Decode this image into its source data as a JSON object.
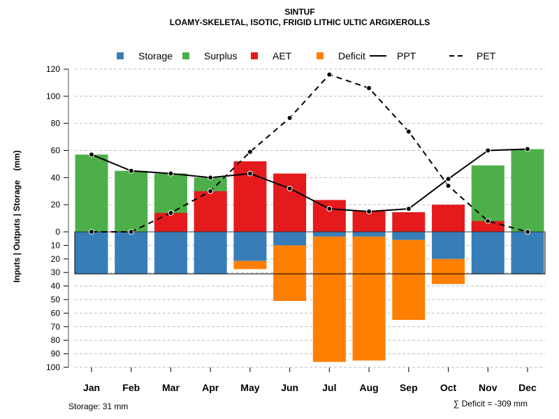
{
  "chart_data": {
    "type": "bar",
    "title": "SINTUF",
    "subtitle": "LOAMY-SKELETAL, ISOTIC, FRIGID LITHIC ULTIC ARGIXEROLLS",
    "ylabel": "Inputs | Outputs | Storage    (mm)",
    "xlabel": "",
    "categories": [
      "Jan",
      "Feb",
      "Mar",
      "Apr",
      "May",
      "Jun",
      "Jul",
      "Aug",
      "Sep",
      "Oct",
      "Nov",
      "Dec"
    ],
    "upper_ticks": [
      "0",
      "20",
      "40",
      "60",
      "80",
      "100",
      "120"
    ],
    "upper_tick_values": [
      0,
      20,
      40,
      60,
      80,
      100,
      120
    ],
    "lower_ticks": [
      "10",
      "20",
      "30",
      "40",
      "50",
      "60",
      "70",
      "80",
      "90",
      "100"
    ],
    "lower_tick_values": [
      10,
      20,
      30,
      40,
      50,
      60,
      70,
      80,
      90,
      100
    ],
    "ylim_upper": [
      0,
      120
    ],
    "ylim_lower": [
      0,
      100
    ],
    "grid": true,
    "legend_position": "top",
    "legend": [
      {
        "name": "Storage",
        "type": "box",
        "color": "#377EB8"
      },
      {
        "name": "Surplus",
        "type": "box",
        "color": "#4DAF4A"
      },
      {
        "name": "AET",
        "type": "box",
        "color": "#E41A1C"
      },
      {
        "name": "Deficit",
        "type": "box",
        "color": "#FF7F00"
      },
      {
        "name": "PPT",
        "type": "solid-line",
        "color": "#000000"
      },
      {
        "name": "PET",
        "type": "dashed-line",
        "color": "#000000"
      }
    ],
    "series": [
      {
        "name": "AET",
        "values": [
          0,
          0,
          14,
          30,
          52,
          43,
          23.5,
          15.5,
          14.5,
          20,
          8,
          0
        ]
      },
      {
        "name": "Surplus_top",
        "values": [
          57,
          45,
          43,
          40,
          0,
          0,
          0,
          0,
          0,
          0,
          49,
          61
        ]
      },
      {
        "name": "Storage",
        "values": [
          31,
          31,
          31,
          31,
          21.5,
          10,
          3.5,
          3.5,
          6,
          20,
          31,
          31
        ]
      },
      {
        "name": "Deficit",
        "values": [
          0,
          0,
          0,
          0,
          6,
          41,
          92.5,
          91.5,
          59,
          18.5,
          0,
          0
        ]
      },
      {
        "name": "PPT",
        "values": [
          57,
          45,
          43,
          40,
          43,
          32,
          17,
          15,
          17,
          39,
          60,
          61
        ]
      },
      {
        "name": "PET",
        "values": [
          0,
          0,
          14,
          30,
          59,
          84,
          116,
          106,
          74,
          34,
          8,
          0
        ]
      }
    ],
    "storage_capacity": 31,
    "storage_note": "Storage: 31 mm",
    "deficit_note": "∑ Deficit = -309 mm",
    "colors": {
      "storage": "#377EB8",
      "surplus": "#4DAF4A",
      "aet": "#E41A1C",
      "deficit": "#FF7F00",
      "grid": "#BEBEBE"
    }
  }
}
